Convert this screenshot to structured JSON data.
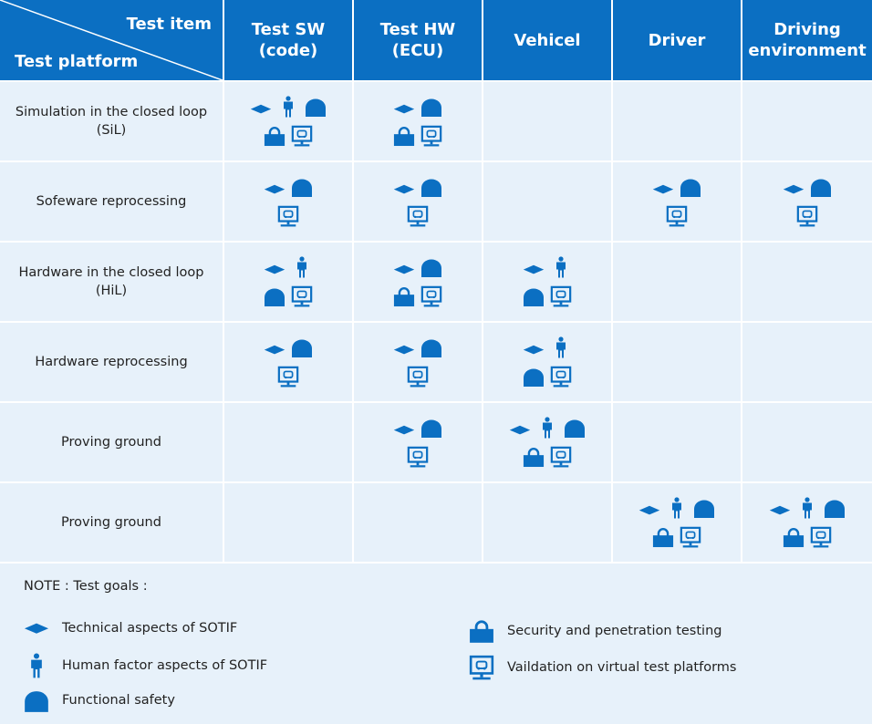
{
  "header": {
    "test_item": "Test item",
    "test_platform": "Test platform",
    "columns": [
      [
        "Test SW",
        "(code)"
      ],
      [
        "Test HW",
        "(ECU)"
      ],
      [
        "Vehicel"
      ],
      [
        "Driver"
      ],
      [
        "Driving",
        "environment"
      ]
    ]
  },
  "rows": [
    {
      "label": "Simulation in the closed loop (SiL)"
    },
    {
      "label": "Sofeware reprocessing"
    },
    {
      "label": "Hardware in the closed loop (HiL)"
    },
    {
      "label": "Hardware reprocessing"
    },
    {
      "label": "Proving ground"
    },
    {
      "label": "Proving ground"
    }
  ],
  "note": {
    "title": "NOTE : Test goals :",
    "legend": [
      "Technical aspects of SOTIF",
      "Human factor aspects of SOTIF",
      "Functional safety",
      "Security and penetration testing",
      "Vaildation on virtual test platforms"
    ]
  }
}
